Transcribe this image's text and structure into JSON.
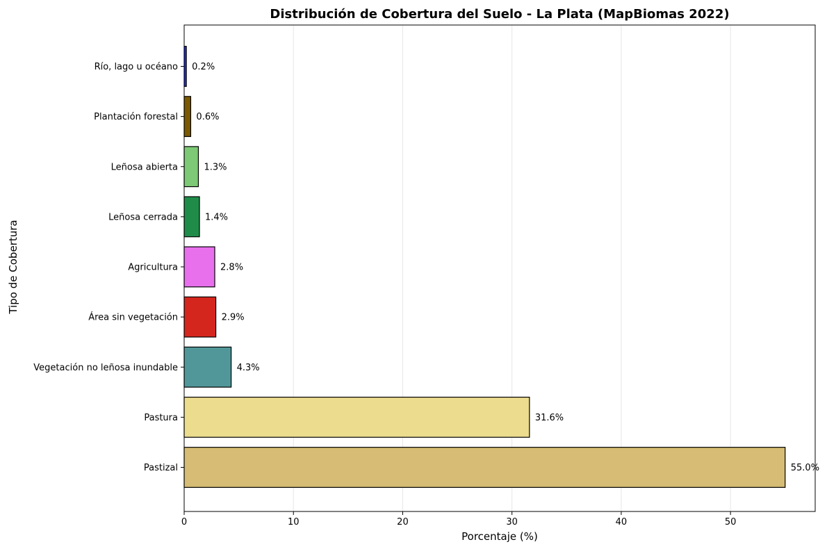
{
  "chart_data": {
    "type": "bar",
    "orientation": "horizontal",
    "title": "Distribución de Cobertura del Suelo - La Plata (MapBiomas 2022)",
    "xlabel": "Porcentaje (%)",
    "ylabel": "Tipo de Cobertura",
    "xlim": [
      0,
      57.75
    ],
    "xticks": [
      0,
      10,
      20,
      30,
      40,
      50
    ],
    "grid": "x",
    "categories": [
      "Pastizal",
      "Pastura",
      "Vegetación no leñosa inundable",
      "Área sin vegetación",
      "Agricultura",
      "Leñosa cerrada",
      "Leñosa abierta",
      "Plantación forestal",
      "Río, lago u océano"
    ],
    "values": [
      55.0,
      31.6,
      4.3,
      2.9,
      2.8,
      1.4,
      1.3,
      0.6,
      0.2
    ],
    "value_labels": [
      "55.0%",
      "31.6%",
      "4.3%",
      "2.9%",
      "2.8%",
      "1.4%",
      "1.3%",
      "0.6%",
      "0.2%"
    ],
    "colors": [
      "#d6bc74",
      "#ecdc8e",
      "#519799",
      "#d5261e",
      "#e870ed",
      "#1f8d49",
      "#7dc975",
      "#7a5900",
      "#2532e4"
    ]
  }
}
